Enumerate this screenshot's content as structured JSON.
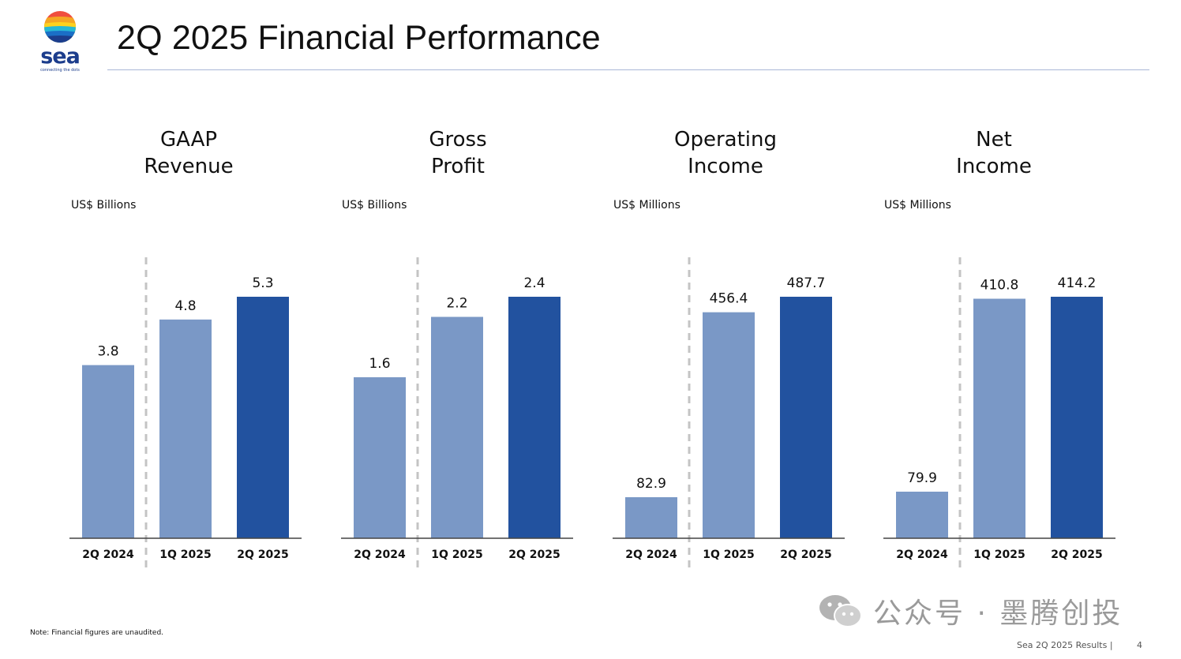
{
  "page": {
    "title": "2Q 2025 Financial Performance",
    "logo": {
      "word": "sea",
      "tagline": "connecting the dots"
    },
    "note": "Note: Financial figures are unaudited.",
    "footer": "Sea 2Q 2025 Results |",
    "page_number": "4",
    "watermark": "公众号 · 墨腾创投"
  },
  "colors": {
    "bar_prior": "#7a98c6",
    "bar_current": "#22529f",
    "axis": "#444444",
    "divider": "#c4c4c4",
    "rule": "#a9b6d6"
  },
  "chart_data": [
    {
      "type": "bar",
      "title": [
        "GAAP",
        "Revenue"
      ],
      "unit": "US$ Billions",
      "categories": [
        "2Q 2024",
        "1Q 2025",
        "2Q 2025"
      ],
      "values": [
        3.8,
        4.8,
        5.3
      ],
      "labels": [
        "3.8",
        "4.8",
        "5.3"
      ],
      "ylim": [
        0,
        5.3
      ],
      "highlight_index": 2
    },
    {
      "type": "bar",
      "title": [
        "Gross",
        "Profit"
      ],
      "unit": "US$ Billions",
      "categories": [
        "2Q 2024",
        "1Q 2025",
        "2Q 2025"
      ],
      "values": [
        1.6,
        2.2,
        2.4
      ],
      "labels": [
        "1.6",
        "2.2",
        "2.4"
      ],
      "ylim": [
        0,
        2.4
      ],
      "highlight_index": 2
    },
    {
      "type": "bar",
      "title": [
        "Operating",
        "Income"
      ],
      "unit": "US$ Millions",
      "categories": [
        "2Q 2024",
        "1Q 2025",
        "2Q 2025"
      ],
      "values": [
        82.9,
        456.4,
        487.7
      ],
      "labels": [
        "82.9",
        "456.4",
        "487.7"
      ],
      "ylim": [
        0,
        487.7
      ],
      "highlight_index": 2
    },
    {
      "type": "bar",
      "title": [
        "Net",
        "Income"
      ],
      "unit": "US$ Millions",
      "categories": [
        "2Q 2024",
        "1Q 2025",
        "2Q 2025"
      ],
      "values": [
        79.9,
        410.8,
        414.2
      ],
      "labels": [
        "79.9",
        "410.8",
        "414.2"
      ],
      "ylim": [
        0,
        414.2
      ],
      "highlight_index": 2
    }
  ]
}
